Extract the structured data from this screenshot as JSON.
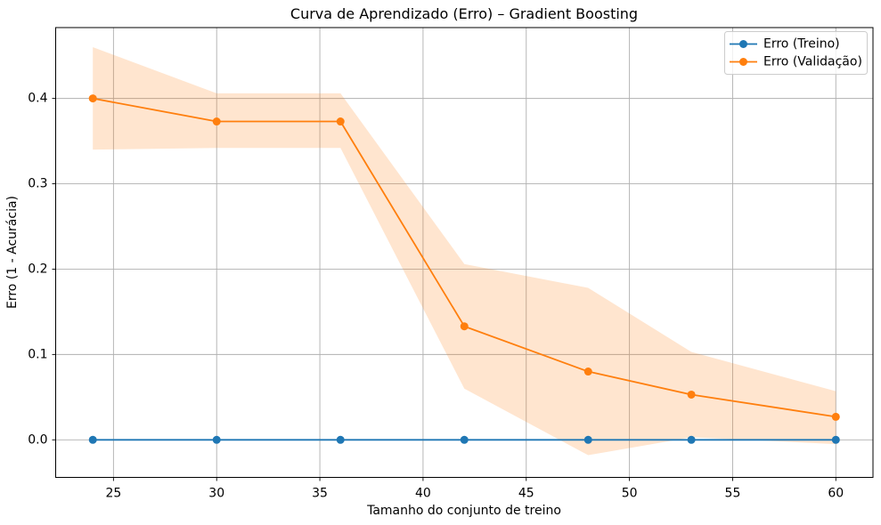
{
  "chart_data": {
    "type": "line",
    "title": "Curva de Aprendizado (Erro) – Gradient Boosting",
    "xlabel": "Tamanho do conjunto de treino",
    "ylabel": "Erro (1 - Acurácia)",
    "x": [
      24,
      30,
      36,
      42,
      48,
      53,
      60
    ],
    "series": [
      {
        "name": "Erro (Treino)",
        "color": "#1f77b4",
        "marker": "circle",
        "values": [
          0.0,
          0.0,
          0.0,
          0.0,
          0.0,
          0.0,
          0.0
        ]
      },
      {
        "name": "Erro (Validação)",
        "color": "#ff7f0e",
        "marker": "circle",
        "values": [
          0.4,
          0.373,
          0.373,
          0.133,
          0.08,
          0.053,
          0.027
        ],
        "band_upper": [
          0.46,
          0.406,
          0.406,
          0.206,
          0.178,
          0.103,
          0.057
        ],
        "band_lower": [
          0.34,
          0.342,
          0.342,
          0.06,
          -0.018,
          0.003,
          -0.005
        ],
        "band_opacity": 0.2
      }
    ],
    "xticks": [
      25,
      30,
      35,
      40,
      45,
      50,
      55,
      60
    ],
    "xtick_labels": [
      "25",
      "30",
      "35",
      "40",
      "45",
      "50",
      "55",
      "60"
    ],
    "yticks": [
      0.0,
      0.1,
      0.2,
      0.3,
      0.4
    ],
    "ytick_labels": [
      "0.0",
      "0.1",
      "0.2",
      "0.3",
      "0.4"
    ],
    "xlim": [
      22.2,
      61.8
    ],
    "ylim": [
      -0.044,
      0.483
    ],
    "grid": true,
    "grid_color": "#b0b0b0",
    "spine_color": "#000000",
    "legend_position": "upper right"
  }
}
